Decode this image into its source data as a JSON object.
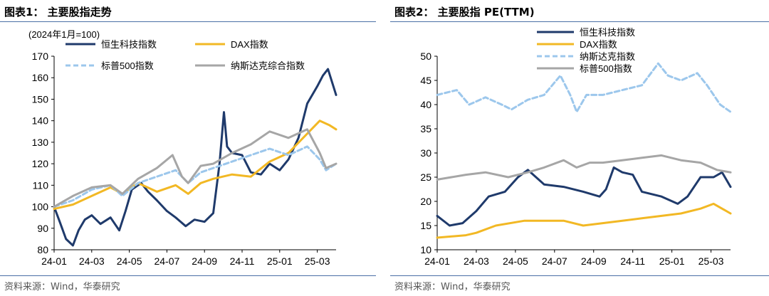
{
  "page": {
    "left": {
      "title": "图表1：  主要股指走势",
      "source": "资料来源：Wind，华泰研究"
    },
    "right": {
      "title": "图表2：  主要股指 PE(TTM)",
      "source": "资料来源：Wind，华泰研究"
    }
  },
  "chart_data": [
    {
      "type": "line",
      "title": "主要股指走势",
      "subtitle": "(2024年1月=100)",
      "xlabel": "",
      "ylabel": "",
      "ylim": [
        80,
        170
      ],
      "yticks": [
        80,
        90,
        100,
        110,
        120,
        130,
        140,
        150,
        160,
        170
      ],
      "xlim": [
        "2024-01",
        "2025-03"
      ],
      "xticks": [
        "24-01",
        "24-03",
        "24-05",
        "24-07",
        "24-09",
        "24-11",
        "25-01",
        "25-03"
      ],
      "grid": false,
      "legend": "top",
      "colors": {
        "hstech": "#1f3a6b",
        "dax": "#f2b824",
        "sp500": "#9cc7ec",
        "nasdaq": "#a6a6a6"
      },
      "series": [
        {
          "name": "恒生科技指数",
          "style": "solid",
          "color": "#1f3a6b",
          "points": [
            [
              "2024-01-01",
              100
            ],
            [
              "2024-01-10",
              93
            ],
            [
              "2024-01-20",
              85
            ],
            [
              "2024-02-01",
              82
            ],
            [
              "2024-02-10",
              89
            ],
            [
              "2024-02-20",
              94
            ],
            [
              "2024-03-01",
              96
            ],
            [
              "2024-03-15",
              92
            ],
            [
              "2024-04-01",
              95
            ],
            [
              "2024-04-15",
              89
            ],
            [
              "2024-04-25",
              98
            ],
            [
              "2024-05-05",
              108
            ],
            [
              "2024-05-20",
              111
            ],
            [
              "2024-06-01",
              107
            ],
            [
              "2024-06-15",
              103
            ],
            [
              "2024-07-01",
              98
            ],
            [
              "2024-07-15",
              95
            ],
            [
              "2024-08-01",
              91
            ],
            [
              "2024-08-15",
              94
            ],
            [
              "2024-09-01",
              93
            ],
            [
              "2024-09-15",
              97
            ],
            [
              "2024-09-25",
              120
            ],
            [
              "2024-10-02",
              144
            ],
            [
              "2024-10-07",
              128
            ],
            [
              "2024-10-15",
              125
            ],
            [
              "2024-11-01",
              124
            ],
            [
              "2024-11-15",
              116
            ],
            [
              "2024-12-01",
              115
            ],
            [
              "2024-12-15",
              120
            ],
            [
              "2025-01-01",
              117
            ],
            [
              "2025-01-15",
              122
            ],
            [
              "2025-02-01",
              132
            ],
            [
              "2025-02-15",
              148
            ],
            [
              "2025-03-01",
              156
            ],
            [
              "2025-03-10",
              161
            ],
            [
              "2025-03-18",
              164
            ],
            [
              "2025-03-31",
              152
            ]
          ]
        },
        {
          "name": "DAX指数",
          "style": "solid",
          "color": "#f2b824",
          "points": [
            [
              "2024-01-01",
              99
            ],
            [
              "2024-02-01",
              101
            ],
            [
              "2024-03-01",
              105
            ],
            [
              "2024-04-01",
              109
            ],
            [
              "2024-04-20",
              106
            ],
            [
              "2024-05-15",
              111
            ],
            [
              "2024-06-15",
              107
            ],
            [
              "2024-07-15",
              110
            ],
            [
              "2024-08-05",
              106
            ],
            [
              "2024-08-25",
              111
            ],
            [
              "2024-09-15",
              113
            ],
            [
              "2024-10-15",
              115
            ],
            [
              "2024-11-15",
              114
            ],
            [
              "2024-12-15",
              121
            ],
            [
              "2025-01-15",
              125
            ],
            [
              "2025-02-15",
              134
            ],
            [
              "2025-03-05",
              140
            ],
            [
              "2025-03-20",
              138
            ],
            [
              "2025-03-31",
              136
            ]
          ]
        },
        {
          "name": "标普500指数",
          "style": "dashed",
          "color": "#9cc7ec",
          "points": [
            [
              "2024-01-01",
              100
            ],
            [
              "2024-02-01",
              103
            ],
            [
              "2024-03-01",
              108
            ],
            [
              "2024-04-01",
              110
            ],
            [
              "2024-04-20",
              105
            ],
            [
              "2024-05-15",
              111
            ],
            [
              "2024-06-15",
              114
            ],
            [
              "2024-07-15",
              117
            ],
            [
              "2024-08-05",
              111
            ],
            [
              "2024-08-25",
              116
            ],
            [
              "2024-09-15",
              118
            ],
            [
              "2024-10-15",
              121
            ],
            [
              "2024-11-15",
              124
            ],
            [
              "2024-12-15",
              127
            ],
            [
              "2025-01-15",
              124
            ],
            [
              "2025-02-15",
              128
            ],
            [
              "2025-03-05",
              122
            ],
            [
              "2025-03-15",
              117
            ],
            [
              "2025-03-31",
              120
            ]
          ]
        },
        {
          "name": "纳斯达克综合指数",
          "style": "solid",
          "color": "#a6a6a6",
          "points": [
            [
              "2024-01-01",
              100
            ],
            [
              "2024-02-01",
              105
            ],
            [
              "2024-03-01",
              109
            ],
            [
              "2024-04-01",
              110
            ],
            [
              "2024-04-20",
              106
            ],
            [
              "2024-05-15",
              113
            ],
            [
              "2024-06-15",
              118
            ],
            [
              "2024-07-10",
              124
            ],
            [
              "2024-07-25",
              114
            ],
            [
              "2024-08-05",
              111
            ],
            [
              "2024-08-25",
              119
            ],
            [
              "2024-09-15",
              120
            ],
            [
              "2024-10-15",
              125
            ],
            [
              "2024-11-15",
              129
            ],
            [
              "2024-12-15",
              135
            ],
            [
              "2025-01-15",
              132
            ],
            [
              "2025-02-15",
              136
            ],
            [
              "2025-03-05",
              125
            ],
            [
              "2025-03-15",
              118
            ],
            [
              "2025-03-31",
              120
            ]
          ]
        }
      ]
    },
    {
      "type": "line",
      "title": "主要股指 PE(TTM)",
      "xlabel": "",
      "ylabel": "",
      "ylim": [
        10,
        50
      ],
      "yticks": [
        10,
        15,
        20,
        25,
        30,
        35,
        40,
        45,
        50
      ],
      "xlim": [
        "2024-01",
        "2025-03"
      ],
      "xticks": [
        "24-01",
        "24-03",
        "24-05",
        "24-07",
        "24-09",
        "24-11",
        "25-01",
        "25-03"
      ],
      "grid": false,
      "legend": "top",
      "colors": {
        "hstech": "#1f3a6b",
        "dax": "#f2b824",
        "nasdaq": "#9cc7ec",
        "sp500": "#a6a6a6"
      },
      "series": [
        {
          "name": "恒生科技指数",
          "style": "solid",
          "color": "#1f3a6b",
          "points": [
            [
              "2024-01-01",
              17
            ],
            [
              "2024-01-20",
              15
            ],
            [
              "2024-02-10",
              15.5
            ],
            [
              "2024-03-01",
              18
            ],
            [
              "2024-03-20",
              21
            ],
            [
              "2024-04-15",
              22
            ],
            [
              "2024-05-05",
              25
            ],
            [
              "2024-05-20",
              26.5
            ],
            [
              "2024-06-15",
              23.5
            ],
            [
              "2024-07-15",
              23
            ],
            [
              "2024-08-15",
              22
            ],
            [
              "2024-09-10",
              21
            ],
            [
              "2024-09-20",
              22.5
            ],
            [
              "2024-10-02",
              27
            ],
            [
              "2024-10-15",
              26
            ],
            [
              "2024-11-01",
              25.5
            ],
            [
              "2024-11-15",
              22
            ],
            [
              "2024-12-15",
              21
            ],
            [
              "2025-01-10",
              19.5
            ],
            [
              "2025-01-25",
              21
            ],
            [
              "2025-02-15",
              25
            ],
            [
              "2025-03-05",
              25
            ],
            [
              "2025-03-18",
              26
            ],
            [
              "2025-03-31",
              23
            ]
          ]
        },
        {
          "name": "DAX指数",
          "style": "solid",
          "color": "#f2b824",
          "points": [
            [
              "2024-01-01",
              12.5
            ],
            [
              "2024-02-15",
              13
            ],
            [
              "2024-03-01",
              13.5
            ],
            [
              "2024-04-01",
              15
            ],
            [
              "2024-05-15",
              16
            ],
            [
              "2024-06-15",
              16
            ],
            [
              "2024-07-15",
              16
            ],
            [
              "2024-08-15",
              15
            ],
            [
              "2024-09-15",
              15.5
            ],
            [
              "2024-10-15",
              16
            ],
            [
              "2024-11-15",
              16.5
            ],
            [
              "2024-12-15",
              17
            ],
            [
              "2025-01-15",
              17.5
            ],
            [
              "2025-02-15",
              18.5
            ],
            [
              "2025-03-05",
              19.5
            ],
            [
              "2025-03-31",
              17.5
            ]
          ]
        },
        {
          "name": "纳斯达克指数",
          "style": "dashed",
          "color": "#9cc7ec",
          "points": [
            [
              "2024-01-01",
              42
            ],
            [
              "2024-02-01",
              43
            ],
            [
              "2024-02-20",
              40
            ],
            [
              "2024-03-15",
              41.5
            ],
            [
              "2024-04-10",
              40
            ],
            [
              "2024-04-25",
              39
            ],
            [
              "2024-05-20",
              41
            ],
            [
              "2024-06-15",
              42
            ],
            [
              "2024-07-10",
              46
            ],
            [
              "2024-07-25",
              42
            ],
            [
              "2024-08-05",
              38.5
            ],
            [
              "2024-08-20",
              42
            ],
            [
              "2024-09-15",
              42
            ],
            [
              "2024-10-15",
              43
            ],
            [
              "2024-11-15",
              44
            ],
            [
              "2024-12-10",
              48.5
            ],
            [
              "2024-12-25",
              46
            ],
            [
              "2025-01-15",
              45
            ],
            [
              "2025-02-10",
              46.5
            ],
            [
              "2025-02-25",
              44
            ],
            [
              "2025-03-15",
              40
            ],
            [
              "2025-03-31",
              38.5
            ]
          ]
        },
        {
          "name": "标普500指数",
          "style": "solid",
          "color": "#a6a6a6",
          "points": [
            [
              "2024-01-01",
              24.5
            ],
            [
              "2024-02-15",
              25.5
            ],
            [
              "2024-03-15",
              26
            ],
            [
              "2024-04-20",
              25
            ],
            [
              "2024-05-20",
              26
            ],
            [
              "2024-06-15",
              27
            ],
            [
              "2024-07-15",
              28.5
            ],
            [
              "2024-08-05",
              27
            ],
            [
              "2024-08-25",
              28
            ],
            [
              "2024-09-15",
              28
            ],
            [
              "2024-10-15",
              28.5
            ],
            [
              "2024-11-15",
              29
            ],
            [
              "2024-12-15",
              29.5
            ],
            [
              "2025-01-15",
              28.5
            ],
            [
              "2025-02-15",
              28
            ],
            [
              "2025-03-10",
              26.5
            ],
            [
              "2025-03-31",
              26
            ]
          ]
        }
      ]
    }
  ]
}
